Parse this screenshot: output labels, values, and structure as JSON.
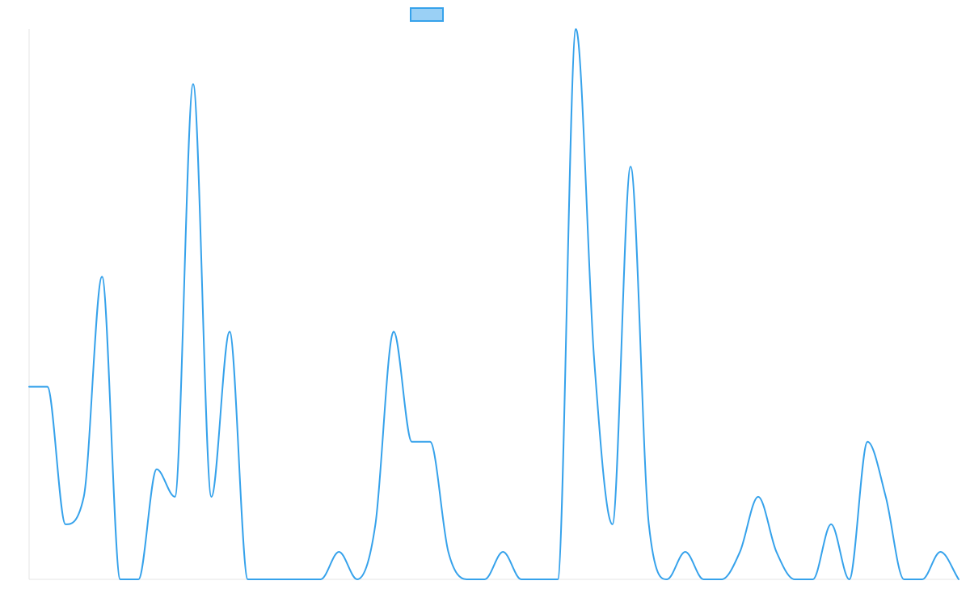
{
  "chart_data": {
    "type": "line",
    "title": "",
    "xlabel": "",
    "ylabel": "",
    "legend": {
      "position": "top-center",
      "show_label": false
    },
    "grid": false,
    "curve": "smooth",
    "x": [
      0,
      1,
      2,
      3,
      4,
      5,
      6,
      7,
      8,
      9,
      10,
      11,
      12,
      13,
      14,
      15,
      16,
      17,
      18,
      19,
      20,
      21,
      22,
      23,
      24,
      25,
      26,
      27,
      28,
      29,
      30,
      31,
      32,
      33,
      34,
      35,
      36,
      37,
      38,
      39,
      40,
      41,
      42,
      43,
      44,
      45,
      46,
      47,
      48,
      49,
      50,
      51
    ],
    "xlim": [
      0,
      51
    ],
    "ylim": [
      0,
      20
    ],
    "series": [
      {
        "name": "",
        "color": "#36a2eb",
        "fill": "#9ad0f5",
        "values": [
          7,
          7,
          2,
          3,
          11,
          0,
          0,
          4,
          3,
          18,
          3,
          9,
          0,
          0,
          0,
          0,
          0,
          1,
          0,
          2,
          9,
          5,
          5,
          1,
          0,
          0,
          1,
          0,
          0,
          0,
          20,
          8,
          2,
          15,
          2,
          0,
          1,
          0,
          0,
          1,
          3,
          1,
          0,
          0,
          2,
          0,
          5,
          3,
          0,
          0,
          1,
          0
        ]
      }
    ]
  }
}
